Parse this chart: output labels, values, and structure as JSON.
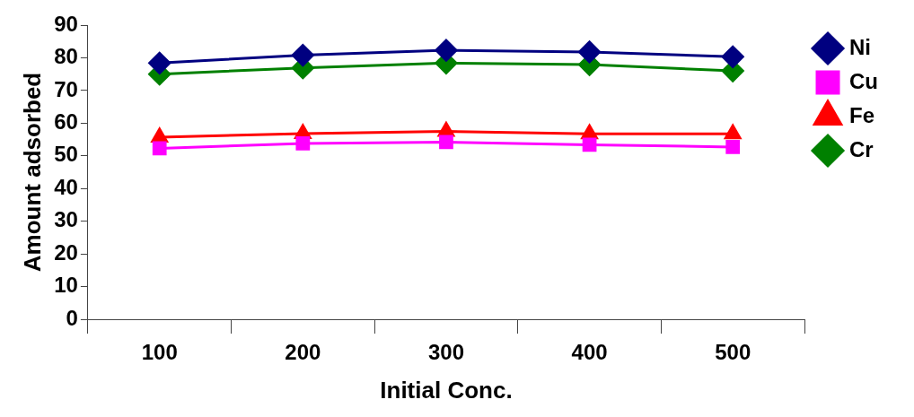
{
  "chart_data": {
    "type": "line",
    "xlabel": "Initial Conc.",
    "ylabel": "Amount adsorbed",
    "categories": [
      "100",
      "200",
      "300",
      "400",
      "500"
    ],
    "series": [
      {
        "name": "Ni",
        "color": "#000080",
        "marker": "diamond",
        "values": [
          78.4,
          80.8,
          82.3,
          81.8,
          80.3
        ]
      },
      {
        "name": "Cu",
        "color": "#ff00ff",
        "marker": "square",
        "values": [
          52.3,
          53.8,
          54.2,
          53.4,
          52.7
        ]
      },
      {
        "name": "Fe",
        "color": "#ff0000",
        "marker": "triangle",
        "values": [
          55.7,
          56.8,
          57.5,
          56.7,
          56.7
        ]
      },
      {
        "name": "Cr",
        "color": "#008000",
        "marker": "diamond",
        "values": [
          75.0,
          76.9,
          78.4,
          77.9,
          76.0
        ]
      }
    ],
    "ylim": [
      0,
      90
    ],
    "yticks": [
      0,
      10,
      20,
      30,
      40,
      50,
      60,
      70,
      80,
      90
    ],
    "grid": false,
    "legend": "right",
    "line_style": "solid"
  }
}
